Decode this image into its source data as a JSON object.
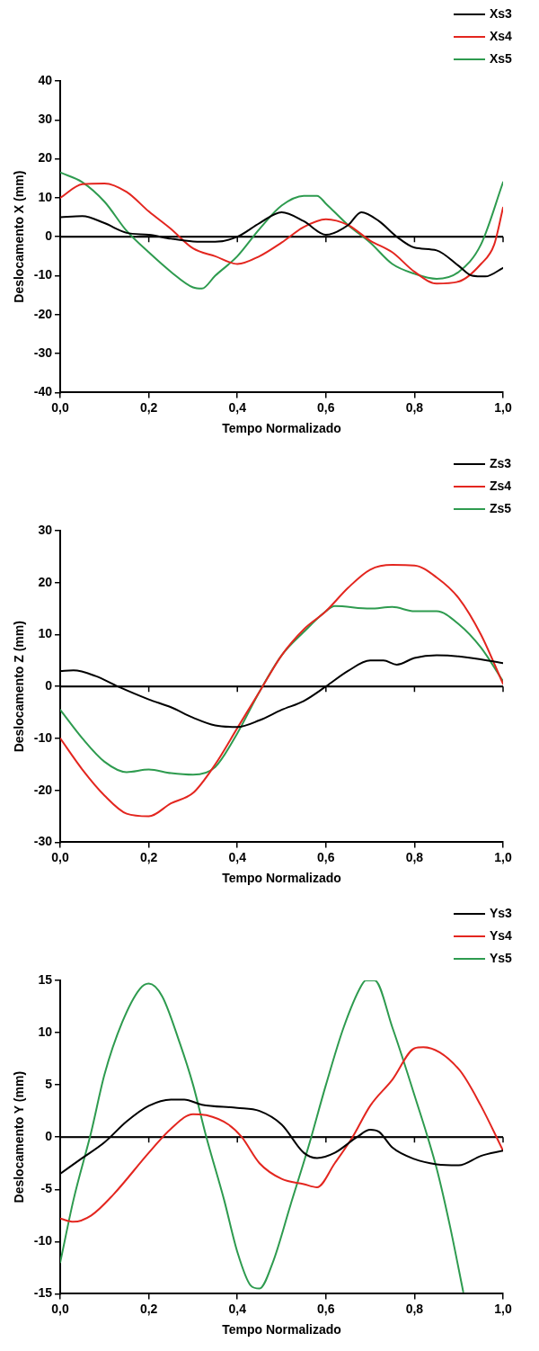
{
  "chart_data": [
    {
      "type": "line",
      "xlabel": "Tempo Normalizado",
      "ylabel": "Deslocamento X (mm)",
      "xlim": [
        0,
        1
      ],
      "ylim": [
        -40,
        40
      ],
      "xticks": [
        {
          "value": 0,
          "label": "0,0"
        },
        {
          "value": 0.2,
          "label": "0,2"
        },
        {
          "value": 0.4,
          "label": "0,4"
        },
        {
          "value": 0.6,
          "label": "0,6"
        },
        {
          "value": 0.8,
          "label": "0,8"
        },
        {
          "value": 1,
          "label": "1,0"
        }
      ],
      "yticks": [
        -40,
        -30,
        -20,
        -10,
        0,
        10,
        20,
        30,
        40
      ],
      "grid": false,
      "legend": "top right",
      "marker": "none",
      "line_style": "solid",
      "ref_lines": [
        {
          "axis": "y",
          "value": 0,
          "color": "#000000"
        }
      ],
      "series": [
        {
          "name": "Xs3",
          "color": "#000000",
          "x": [
            0,
            0.05,
            0.1,
            0.15,
            0.2,
            0.25,
            0.3,
            0.35,
            0.4,
            0.45,
            0.5,
            0.55,
            0.6,
            0.65,
            0.68,
            0.72,
            0.76,
            0.8,
            0.85,
            0.9,
            0.93,
            0.96,
            1.0
          ],
          "values": [
            5,
            5.3,
            3.5,
            1,
            0.5,
            -0.5,
            -1.2,
            -1.3,
            0,
            3.5,
            6.3,
            4,
            0.5,
            3,
            6.3,
            4,
            0,
            -2.8,
            -3.5,
            -7.5,
            -10,
            -10.2,
            -8
          ]
        },
        {
          "name": "Xs4",
          "color": "#e3261f",
          "x": [
            0,
            0.05,
            0.1,
            0.15,
            0.2,
            0.25,
            0.3,
            0.35,
            0.4,
            0.45,
            0.5,
            0.55,
            0.6,
            0.65,
            0.7,
            0.75,
            0.8,
            0.85,
            0.9,
            0.95,
            0.98,
            1.0
          ],
          "values": [
            10,
            13.5,
            13.7,
            11.5,
            6.5,
            2,
            -3,
            -5,
            -7,
            -5,
            -1.5,
            2.5,
            4.5,
            3,
            -1,
            -4,
            -9,
            -12,
            -11.5,
            -7,
            -2,
            7.5
          ]
        },
        {
          "name": "Xs5",
          "color": "#2e9b4f",
          "x": [
            0,
            0.05,
            0.1,
            0.15,
            0.2,
            0.25,
            0.3,
            0.32,
            0.35,
            0.4,
            0.45,
            0.5,
            0.55,
            0.58,
            0.6,
            0.65,
            0.7,
            0.75,
            0.8,
            0.85,
            0.9,
            0.95,
            1.0
          ],
          "values": [
            16.5,
            14,
            9,
            1.5,
            -4,
            -9,
            -13,
            -13.3,
            -10,
            -5,
            2,
            8,
            10.5,
            10.5,
            8.5,
            3,
            -1.5,
            -7,
            -9.5,
            -10.8,
            -9,
            -2,
            14
          ]
        }
      ]
    },
    {
      "type": "line",
      "xlabel": "Tempo Normalizado",
      "ylabel": "Deslocamento Z (mm)",
      "xlim": [
        0,
        1
      ],
      "ylim": [
        -30,
        30
      ],
      "xticks": [
        {
          "value": 0,
          "label": "0,0"
        },
        {
          "value": 0.2,
          "label": "0,2"
        },
        {
          "value": 0.4,
          "label": "0,4"
        },
        {
          "value": 0.6,
          "label": "0,6"
        },
        {
          "value": 0.8,
          "label": "0,8"
        },
        {
          "value": 1,
          "label": "1,0"
        }
      ],
      "yticks": [
        -30,
        -20,
        -10,
        0,
        10,
        20,
        30
      ],
      "grid": false,
      "legend": "top right",
      "marker": "none",
      "line_style": "solid",
      "ref_lines": [
        {
          "axis": "y",
          "value": 0,
          "color": "#000000"
        }
      ],
      "series": [
        {
          "name": "Zs3",
          "color": "#000000",
          "x": [
            0,
            0.03,
            0.08,
            0.13,
            0.2,
            0.25,
            0.3,
            0.35,
            0.4,
            0.45,
            0.5,
            0.55,
            0.6,
            0.65,
            0.7,
            0.73,
            0.76,
            0.8,
            0.85,
            0.9,
            1.0
          ],
          "values": [
            3,
            3.1,
            2,
            0,
            -2.5,
            -4,
            -6,
            -7.5,
            -7.8,
            -6.5,
            -4.5,
            -2.8,
            0,
            3,
            5,
            5,
            4.2,
            5.5,
            6,
            5.8,
            4.5
          ]
        },
        {
          "name": "Zs4",
          "color": "#e3261f",
          "x": [
            0,
            0.05,
            0.1,
            0.15,
            0.2,
            0.25,
            0.3,
            0.35,
            0.4,
            0.45,
            0.5,
            0.55,
            0.6,
            0.65,
            0.7,
            0.75,
            0.8,
            0.85,
            0.9,
            0.95,
            1.0
          ],
          "values": [
            -10,
            -16,
            -21,
            -24.5,
            -25,
            -22.5,
            -20.5,
            -15,
            -8,
            -1,
            6,
            11,
            14.5,
            19,
            22.5,
            23.4,
            23.3,
            21,
            17,
            10,
            0.5
          ]
        },
        {
          "name": "Zs5",
          "color": "#2e9b4f",
          "x": [
            0,
            0.05,
            0.1,
            0.15,
            0.2,
            0.25,
            0.3,
            0.35,
            0.4,
            0.45,
            0.5,
            0.55,
            0.6,
            0.62,
            0.7,
            0.75,
            0.8,
            0.85,
            0.9,
            0.95,
            1.0
          ],
          "values": [
            -4.5,
            -10,
            -14.5,
            -16.5,
            -16,
            -16.7,
            -17,
            -15.5,
            -9,
            -1,
            6,
            10.5,
            14.5,
            15.5,
            15,
            15.3,
            14.5,
            14.5,
            12,
            7.5,
            1
          ]
        }
      ]
    },
    {
      "type": "line",
      "xlabel": "Tempo Normalizado",
      "ylabel": "Deslocamento Y (mm)",
      "xlim": [
        0,
        1
      ],
      "ylim": [
        -15,
        15
      ],
      "xticks": [
        {
          "value": 0,
          "label": "0,0"
        },
        {
          "value": 0.2,
          "label": "0,2"
        },
        {
          "value": 0.4,
          "label": "0,4"
        },
        {
          "value": 0.6,
          "label": "0,6"
        },
        {
          "value": 0.8,
          "label": "0,8"
        },
        {
          "value": 1,
          "label": "1,0"
        }
      ],
      "yticks": [
        -15,
        -10,
        -5,
        0,
        5,
        10,
        15
      ],
      "grid": false,
      "legend": "top right",
      "marker": "none",
      "line_style": "solid",
      "ref_lines": [
        {
          "axis": "y",
          "value": 0,
          "color": "#000000"
        }
      ],
      "series": [
        {
          "name": "Ys3",
          "color": "#000000",
          "x": [
            0,
            0.05,
            0.1,
            0.15,
            0.2,
            0.25,
            0.28,
            0.32,
            0.4,
            0.45,
            0.5,
            0.55,
            0.58,
            0.62,
            0.67,
            0.7,
            0.72,
            0.75,
            0.8,
            0.85,
            0.9,
            0.95,
            1.0
          ],
          "values": [
            -3.5,
            -2,
            -0.5,
            1.5,
            3,
            3.6,
            3.6,
            3.1,
            2.8,
            2.5,
            1.2,
            -1.5,
            -2,
            -1.5,
            0,
            0.7,
            0.5,
            -1,
            -2.1,
            -2.6,
            -2.7,
            -1.8,
            -1.3
          ]
        },
        {
          "name": "Ys4",
          "color": "#e3261f",
          "x": [
            0,
            0.03,
            0.07,
            0.12,
            0.2,
            0.25,
            0.3,
            0.33,
            0.38,
            0.41,
            0.45,
            0.5,
            0.55,
            0.58,
            0.62,
            0.66,
            0.7,
            0.75,
            0.8,
            0.82,
            0.9,
            0.95,
            1.0
          ],
          "values": [
            -7.8,
            -8.1,
            -7.5,
            -5.5,
            -1.5,
            0.8,
            2.2,
            2.1,
            1.2,
            0,
            -2.5,
            -4,
            -4.5,
            -4.8,
            -2.5,
            0,
            3,
            5.5,
            8.5,
            8.6,
            6.5,
            3,
            -1.3
          ]
        },
        {
          "name": "Ys5",
          "color": "#2e9b4f",
          "x": [
            0,
            0.03,
            0.07,
            0.1,
            0.14,
            0.18,
            0.2,
            0.23,
            0.27,
            0.3,
            0.33,
            0.37,
            0.4,
            0.43,
            0.45,
            0.48,
            0.52,
            0.56,
            0.6,
            0.64,
            0.68,
            0.69,
            0.71,
            0.75,
            0.8,
            0.85,
            0.88,
            0.91
          ],
          "values": [
            -12,
            -6,
            0.5,
            6,
            11,
            14.2,
            14.7,
            13.5,
            9,
            5,
            0,
            -6,
            -11,
            -14.2,
            -14.5,
            -12,
            -6.5,
            -1,
            5,
            10.5,
            14.5,
            15,
            15,
            10.5,
            4,
            -3,
            -8.5,
            -14.8
          ]
        }
      ]
    }
  ]
}
